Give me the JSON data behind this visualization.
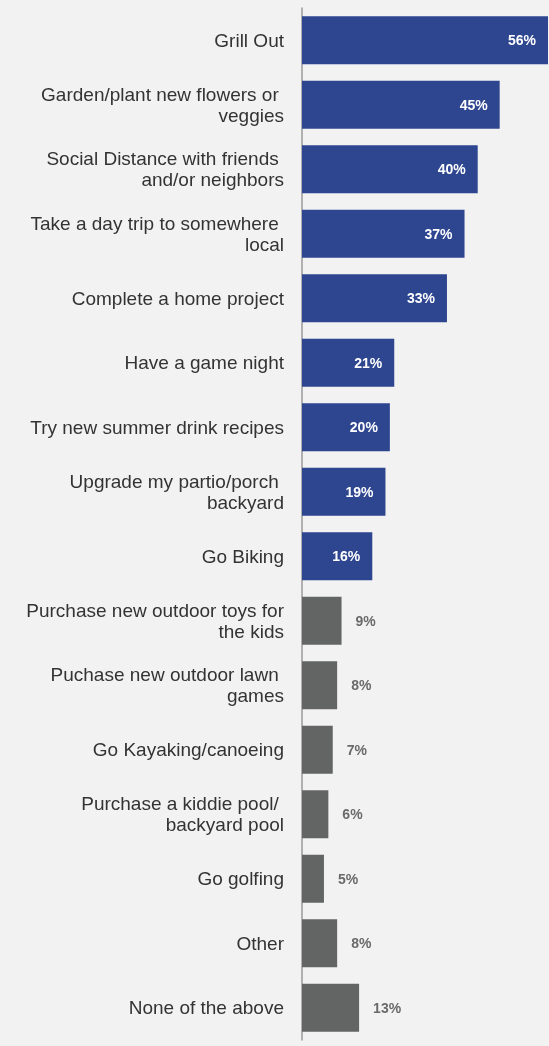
{
  "chart_data": {
    "type": "bar",
    "orientation": "horizontal",
    "categories": [
      "Grill Out",
      "Garden/plant new flowers or veggies",
      "Social Distance with friends and/or neighbors",
      "Take a day trip to somewhere local",
      "Complete a home project",
      "Have a game night",
      "Try new summer drink recipes",
      "Upgrade my partio/porch backyard",
      "Go Biking",
      "Purchase new outdoor toys for the kids",
      "Puchase new outdoor lawn games",
      "Go Kayaking/canoeing",
      "Purchase a kiddie pool/ backyard pool",
      "Go golfing",
      "Other",
      "None of the above"
    ],
    "values": [
      56,
      45,
      40,
      37,
      33,
      21,
      20,
      19,
      16,
      9,
      8,
      7,
      6,
      5,
      8,
      13
    ],
    "value_labels": [
      "56%",
      "45%",
      "40%",
      "37%",
      "33%",
      "21%",
      "20%",
      "19%",
      "16%",
      "9%",
      "8%",
      "7%",
      "6%",
      "5%",
      "8%",
      "13%"
    ],
    "colors": [
      "#2e4690",
      "#2e4690",
      "#2e4690",
      "#2e4690",
      "#2e4690",
      "#2e4690",
      "#2e4690",
      "#2e4690",
      "#2e4690",
      "#636565",
      "#636565",
      "#636565",
      "#636565",
      "#636565",
      "#636565",
      "#636565"
    ]
  }
}
